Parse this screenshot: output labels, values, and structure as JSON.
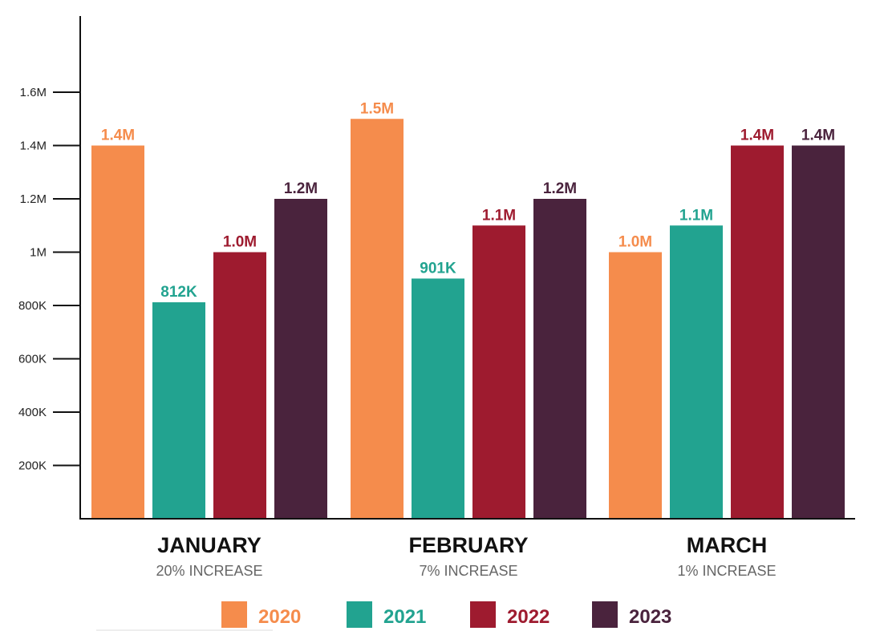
{
  "chart_data": {
    "type": "bar",
    "categories": [
      "JANUARY",
      "FEBRUARY",
      "MARCH"
    ],
    "category_subtitles": [
      "20% INCREASE",
      "7% INCREASE",
      "1% INCREASE"
    ],
    "series": [
      {
        "name": "2020",
        "color": "#f58c4c",
        "values": [
          1400000,
          1500000,
          1000000
        ],
        "labels": [
          "1.4M",
          "1.5M",
          "1.0M"
        ]
      },
      {
        "name": "2021",
        "color": "#22a390",
        "values": [
          812000,
          901000,
          1100000
        ],
        "labels": [
          "812K",
          "901K",
          "1.1M"
        ]
      },
      {
        "name": "2022",
        "color": "#9e1b2f",
        "values": [
          1000000,
          1100000,
          1400000
        ],
        "labels": [
          "1.0M",
          "1.1M",
          "1.4M"
        ]
      },
      {
        "name": "2023",
        "color": "#4a233d",
        "values": [
          1200000,
          1200000,
          1400000
        ],
        "labels": [
          "1.2M",
          "1.2M",
          "1.4M"
        ]
      }
    ],
    "y_ticks": [
      {
        "value": 200000,
        "label": "200K"
      },
      {
        "value": 400000,
        "label": "400K"
      },
      {
        "value": 600000,
        "label": "600K"
      },
      {
        "value": 800000,
        "label": "800K"
      },
      {
        "value": 1000000,
        "label": "1M"
      },
      {
        "value": 1200000,
        "label": "1.2M"
      },
      {
        "value": 1400000,
        "label": "1.4M"
      },
      {
        "value": 1600000,
        "label": "1.6M"
      }
    ],
    "ylim": [
      0,
      1800000
    ],
    "grid": false,
    "legend_position": "bottom"
  }
}
